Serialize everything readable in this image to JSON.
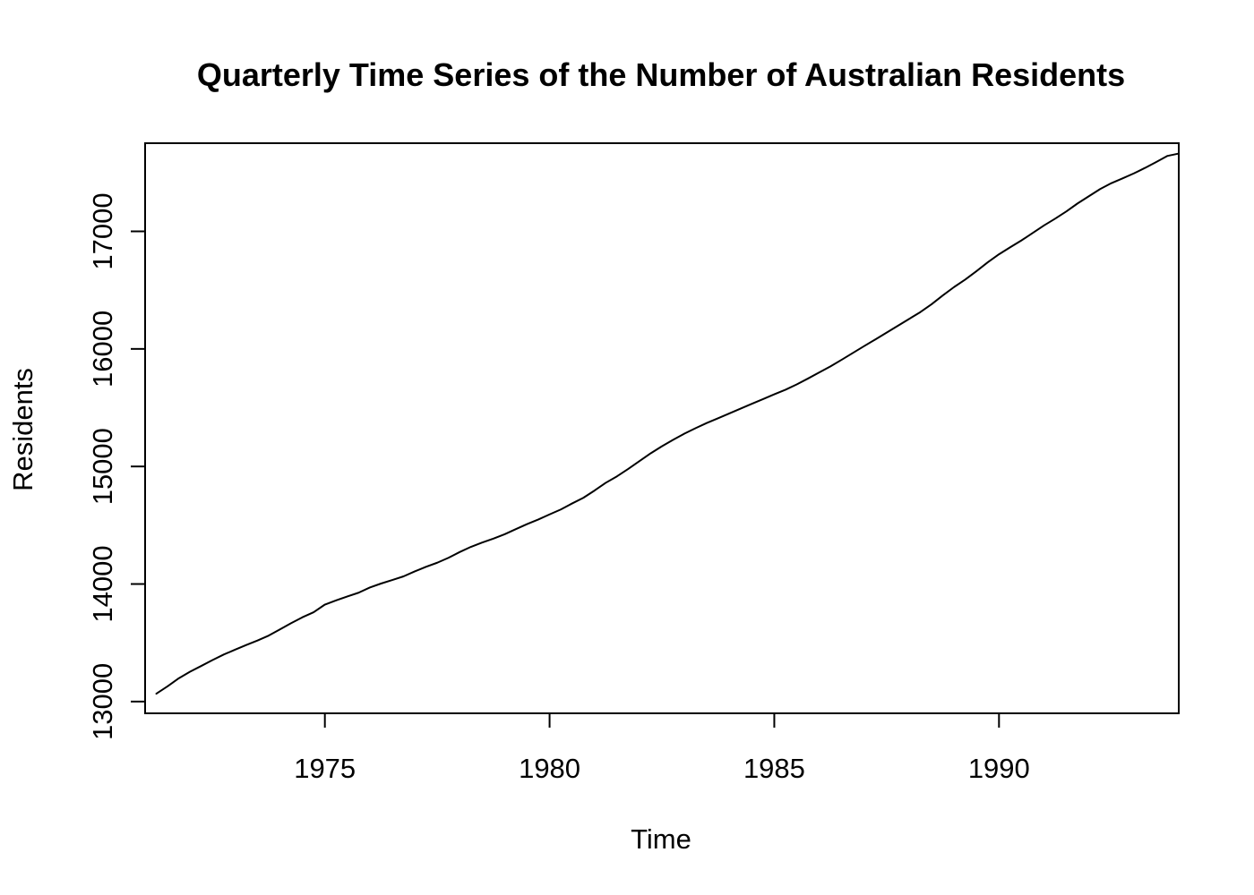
{
  "chart_data": {
    "type": "line",
    "title": "Quarterly Time Series of the Number of Australian Residents",
    "xlabel": "Time",
    "ylabel": "Residents",
    "xlim": [
      1971.0,
      1994.0
    ],
    "ylim": [
      12900,
      17750
    ],
    "x_ticks": [
      1975,
      1980,
      1985,
      1990
    ],
    "x_tick_labels": [
      "1975",
      "1980",
      "1985",
      "1990"
    ],
    "y_ticks": [
      13000,
      14000,
      15000,
      16000,
      17000
    ],
    "y_tick_labels": [
      "13000",
      "14000",
      "15000",
      "16000",
      "17000"
    ],
    "grid": false,
    "series": [
      {
        "name": "Residents",
        "color": "#000000",
        "points": [
          [
            1971.25,
            13067
          ],
          [
            1971.5,
            13130
          ],
          [
            1971.75,
            13198
          ],
          [
            1972.0,
            13254
          ],
          [
            1972.25,
            13303
          ],
          [
            1972.5,
            13353
          ],
          [
            1972.75,
            13400
          ],
          [
            1973.0,
            13441
          ],
          [
            1973.25,
            13481
          ],
          [
            1973.5,
            13519
          ],
          [
            1973.75,
            13561
          ],
          [
            1974.0,
            13614
          ],
          [
            1974.25,
            13667
          ],
          [
            1974.5,
            13717
          ],
          [
            1974.75,
            13760
          ],
          [
            1975.0,
            13825
          ],
          [
            1975.25,
            13861
          ],
          [
            1975.5,
            13894
          ],
          [
            1975.75,
            13926
          ],
          [
            1976.0,
            13970
          ],
          [
            1976.25,
            14004
          ],
          [
            1976.5,
            14034
          ],
          [
            1976.75,
            14065
          ],
          [
            1977.0,
            14107
          ],
          [
            1977.25,
            14146
          ],
          [
            1977.5,
            14181
          ],
          [
            1977.75,
            14223
          ],
          [
            1978.0,
            14272
          ],
          [
            1978.25,
            14316
          ],
          [
            1978.5,
            14353
          ],
          [
            1978.75,
            14386
          ],
          [
            1979.0,
            14423
          ],
          [
            1979.25,
            14467
          ],
          [
            1979.5,
            14510
          ],
          [
            1979.75,
            14549
          ],
          [
            1980.0,
            14592
          ],
          [
            1980.25,
            14634
          ],
          [
            1980.5,
            14685
          ],
          [
            1980.75,
            14733
          ],
          [
            1981.0,
            14795
          ],
          [
            1981.25,
            14861
          ],
          [
            1981.5,
            14916
          ],
          [
            1981.75,
            14979
          ],
          [
            1982.0,
            15046
          ],
          [
            1982.25,
            15112
          ],
          [
            1982.5,
            15172
          ],
          [
            1982.75,
            15227
          ],
          [
            1983.0,
            15279
          ],
          [
            1983.25,
            15326
          ],
          [
            1983.5,
            15370
          ],
          [
            1983.75,
            15410
          ],
          [
            1984.0,
            15451
          ],
          [
            1984.25,
            15492
          ],
          [
            1984.5,
            15533
          ],
          [
            1984.75,
            15573
          ],
          [
            1985.0,
            15614
          ],
          [
            1985.25,
            15653
          ],
          [
            1985.5,
            15698
          ],
          [
            1985.75,
            15748
          ],
          [
            1986.0,
            15800
          ],
          [
            1986.25,
            15851
          ],
          [
            1986.5,
            15908
          ],
          [
            1986.75,
            15966
          ],
          [
            1987.0,
            16024
          ],
          [
            1987.25,
            16081
          ],
          [
            1987.5,
            16139
          ],
          [
            1987.75,
            16197
          ],
          [
            1988.0,
            16255
          ],
          [
            1988.25,
            16313
          ],
          [
            1988.5,
            16380
          ],
          [
            1988.75,
            16455
          ],
          [
            1989.0,
            16526
          ],
          [
            1989.25,
            16590
          ],
          [
            1989.5,
            16662
          ],
          [
            1989.75,
            16737
          ],
          [
            1990.0,
            16805
          ],
          [
            1990.25,
            16865
          ],
          [
            1990.5,
            16923
          ],
          [
            1990.75,
            16986
          ],
          [
            1991.0,
            17050
          ],
          [
            1991.25,
            17108
          ],
          [
            1991.5,
            17170
          ],
          [
            1991.75,
            17238
          ],
          [
            1992.0,
            17299
          ],
          [
            1992.25,
            17360
          ],
          [
            1992.5,
            17410
          ],
          [
            1992.75,
            17451
          ],
          [
            1993.0,
            17493
          ],
          [
            1993.25,
            17540
          ],
          [
            1993.5,
            17590
          ],
          [
            1993.75,
            17642
          ],
          [
            1994.0,
            17662
          ]
        ]
      }
    ]
  }
}
